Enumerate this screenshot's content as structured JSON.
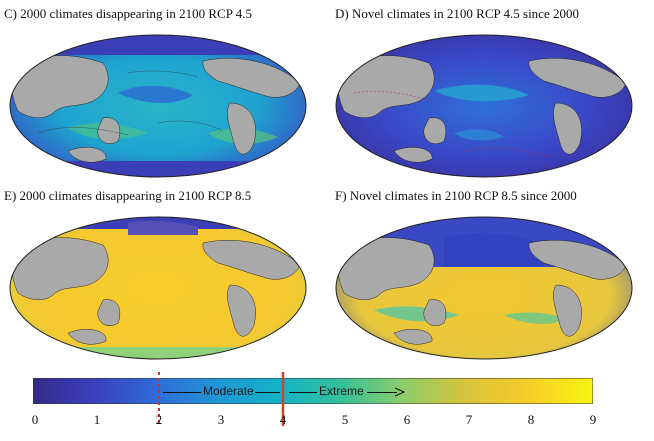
{
  "panels": {
    "c": {
      "title": "C) 2000 climates disappearing in 2100 RCP 4.5"
    },
    "d": {
      "title": "D) Novel climates in 2100 RCP 4.5 since 2000"
    },
    "e": {
      "title": "E) 2000 climates disappearing in 2100 RCP 8.5"
    },
    "f": {
      "title": "F) Novel climates in 2100 RCP 8.5 since 2000"
    }
  },
  "colorbar": {
    "ticks": [
      "0",
      "1",
      "2",
      "3",
      "4",
      "5",
      "6",
      "7",
      "8",
      "9"
    ],
    "moderate_label": "Moderate",
    "extreme_label": "Extreme",
    "colors": {
      "low": "#3b2a8e",
      "mid_low": "#2f6bd8",
      "mid": "#1fb6c6",
      "mid_high": "#6fcf7a",
      "high": "#f6cb2a",
      "max": "#f7e11d",
      "land": "#a9a9a9",
      "moderate_marker": "#d0302c",
      "extreme_marker": "#c9452b"
    }
  }
}
